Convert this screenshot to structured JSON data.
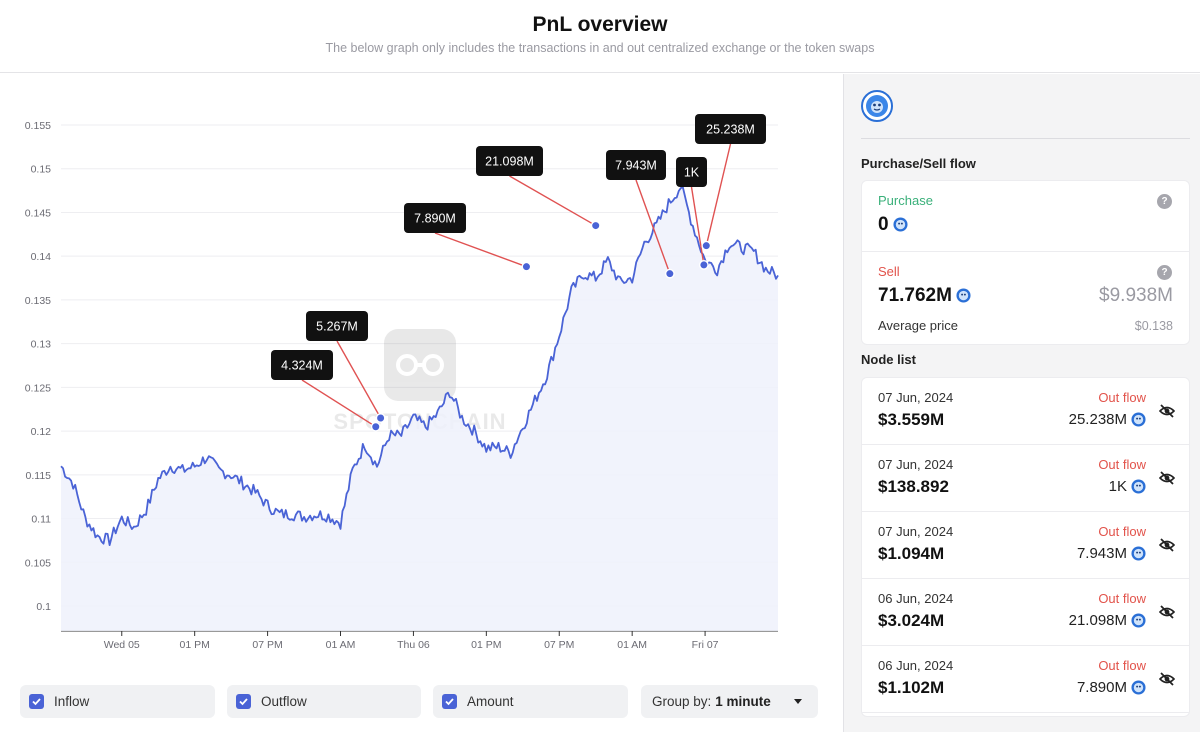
{
  "header": {
    "title": "PnL overview",
    "subtitle": "The below graph only includes the transactions in and out centralized exchange or the token swaps"
  },
  "watermark": "SPOTONCHAIN",
  "chart_data": {
    "type": "line",
    "y_ticks": [
      "0.155",
      "0.15",
      "0.145",
      "0.14",
      "0.135",
      "0.13",
      "0.125",
      "0.12",
      "0.115",
      "0.11",
      "0.105",
      "0.1"
    ],
    "x_ticks": [
      "Wed 05",
      "01 PM",
      "07 PM",
      "01 AM",
      "Thu 06",
      "01 PM",
      "07 PM",
      "01 AM",
      "Fri 07"
    ],
    "ylim": [
      0.1,
      0.155
    ],
    "x_range_hours": [
      0,
      59
    ],
    "x_tick_hours": [
      5,
      11,
      17,
      23,
      29,
      35,
      41,
      47,
      53
    ],
    "series": [
      {
        "x": [
          0,
          1,
          2,
          3,
          4,
          5,
          6,
          7,
          8,
          9,
          10,
          11,
          12,
          13,
          14,
          15,
          16,
          17,
          18,
          19,
          20,
          21,
          22,
          23,
          24,
          25,
          26,
          27,
          28,
          29,
          30,
          31,
          32,
          33,
          34,
          35,
          36,
          37,
          38,
          39,
          40,
          41,
          42,
          43,
          44,
          45,
          46,
          47,
          48,
          49,
          50,
          51,
          52,
          53,
          54,
          55,
          56,
          57,
          58,
          59
        ],
        "values": [
          0.116,
          0.114,
          0.11,
          0.108,
          0.1075,
          0.11,
          0.109,
          0.111,
          0.1145,
          0.116,
          0.1155,
          0.116,
          0.117,
          0.1155,
          0.115,
          0.114,
          0.113,
          0.1115,
          0.1105,
          0.1105,
          0.1102,
          0.1105,
          0.1103,
          0.1095,
          0.1155,
          0.1185,
          0.116,
          0.1195,
          0.1195,
          0.1215,
          0.1205,
          0.122,
          0.1245,
          0.1215,
          0.12,
          0.118,
          0.1182,
          0.1175,
          0.1205,
          0.1235,
          0.1265,
          0.131,
          0.136,
          0.138,
          0.1375,
          0.1395,
          0.137,
          0.1375,
          0.1415,
          0.1435,
          0.146,
          0.148,
          0.1435,
          0.1395,
          0.1385,
          0.1415,
          0.141,
          0.1405,
          0.1385,
          0.1378
        ]
      }
    ],
    "annotations": [
      {
        "label": "4.324M",
        "x": 25.9,
        "y": 0.1205
      },
      {
        "label": "5.267M",
        "x": 26.3,
        "y": 0.1215
      },
      {
        "label": "7.890M",
        "x": 38.3,
        "y": 0.1388
      },
      {
        "label": "21.098M",
        "x": 44.0,
        "y": 0.1435
      },
      {
        "label": "7.943M",
        "x": 50.1,
        "y": 0.138
      },
      {
        "label": "1K",
        "x": 52.9,
        "y": 0.139
      },
      {
        "label": "25.238M",
        "x": 53.1,
        "y": 0.1412
      }
    ],
    "grid": true
  },
  "controls": {
    "inflow_label": "Inflow",
    "outflow_label": "Outflow",
    "amount_label": "Amount",
    "group_by_label": "Group by:",
    "group_by_value": "1 minute"
  },
  "sidebar": {
    "flow_title": "Purchase/Sell flow",
    "purchase_label": "Purchase",
    "purchase_value": "0",
    "sell_label": "Sell",
    "sell_value": "71.762M",
    "sell_usd": "$9.938M",
    "average_price_label": "Average price",
    "average_price_value": "$0.138",
    "node_list_title": "Node list",
    "nodes": [
      {
        "date": "07 Jun, 2024",
        "usd": "$3.559M",
        "flow": "Out flow",
        "amount": "25.238M"
      },
      {
        "date": "07 Jun, 2024",
        "usd": "$138.892",
        "flow": "Out flow",
        "amount": "1K"
      },
      {
        "date": "07 Jun, 2024",
        "usd": "$1.094M",
        "flow": "Out flow",
        "amount": "7.943M"
      },
      {
        "date": "06 Jun, 2024",
        "usd": "$3.024M",
        "flow": "Out flow",
        "amount": "21.098M"
      },
      {
        "date": "06 Jun, 2024",
        "usd": "$1.102M",
        "flow": "Out flow",
        "amount": "7.890M"
      }
    ]
  },
  "colors": {
    "line": "#4a63d6",
    "area": "#eef1fc",
    "annotation_bg": "#111111",
    "connector": "#e05252",
    "inflow_text": "#3ab07a",
    "outflow_text": "#e2534b"
  }
}
